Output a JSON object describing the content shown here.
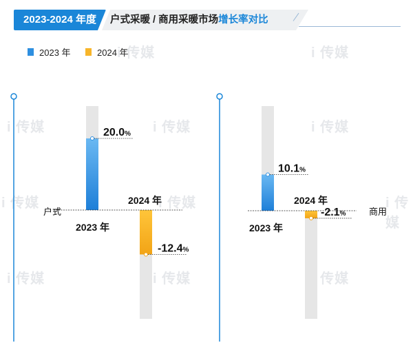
{
  "header": {
    "year_label": "2023-2024 年度",
    "title_main": "户式采暖 / 商用采暖市场",
    "title_highlight": "增长率对比"
  },
  "legend": [
    {
      "label": "2023 年",
      "color": "#2e8fe0"
    },
    {
      "label": "2024 年",
      "color": "#f7b52a"
    }
  ],
  "watermark": "i 传媒",
  "colors": {
    "accent": "#1a86d8",
    "series_2023": "#2e8fe0",
    "series_2024": "#f7b52a",
    "track": "#e6e6e6"
  },
  "chart_data": [
    {
      "type": "bar",
      "category": "户式",
      "x_tick_labels": [
        "2023 年",
        "2024 年"
      ],
      "series": [
        {
          "name": "2023 年",
          "value": 20.0,
          "label": "20.0%"
        },
        {
          "name": "2024 年",
          "value": -12.4,
          "label": "-12.4%"
        }
      ]
    },
    {
      "type": "bar",
      "category": "商用",
      "x_tick_labels": [
        "2023 年",
        "2024 年"
      ],
      "series": [
        {
          "name": "2023 年",
          "value": 10.1,
          "label": "10.1%"
        },
        {
          "name": "2024 年",
          "value": -2.1,
          "label": "-2.1%"
        }
      ]
    }
  ]
}
